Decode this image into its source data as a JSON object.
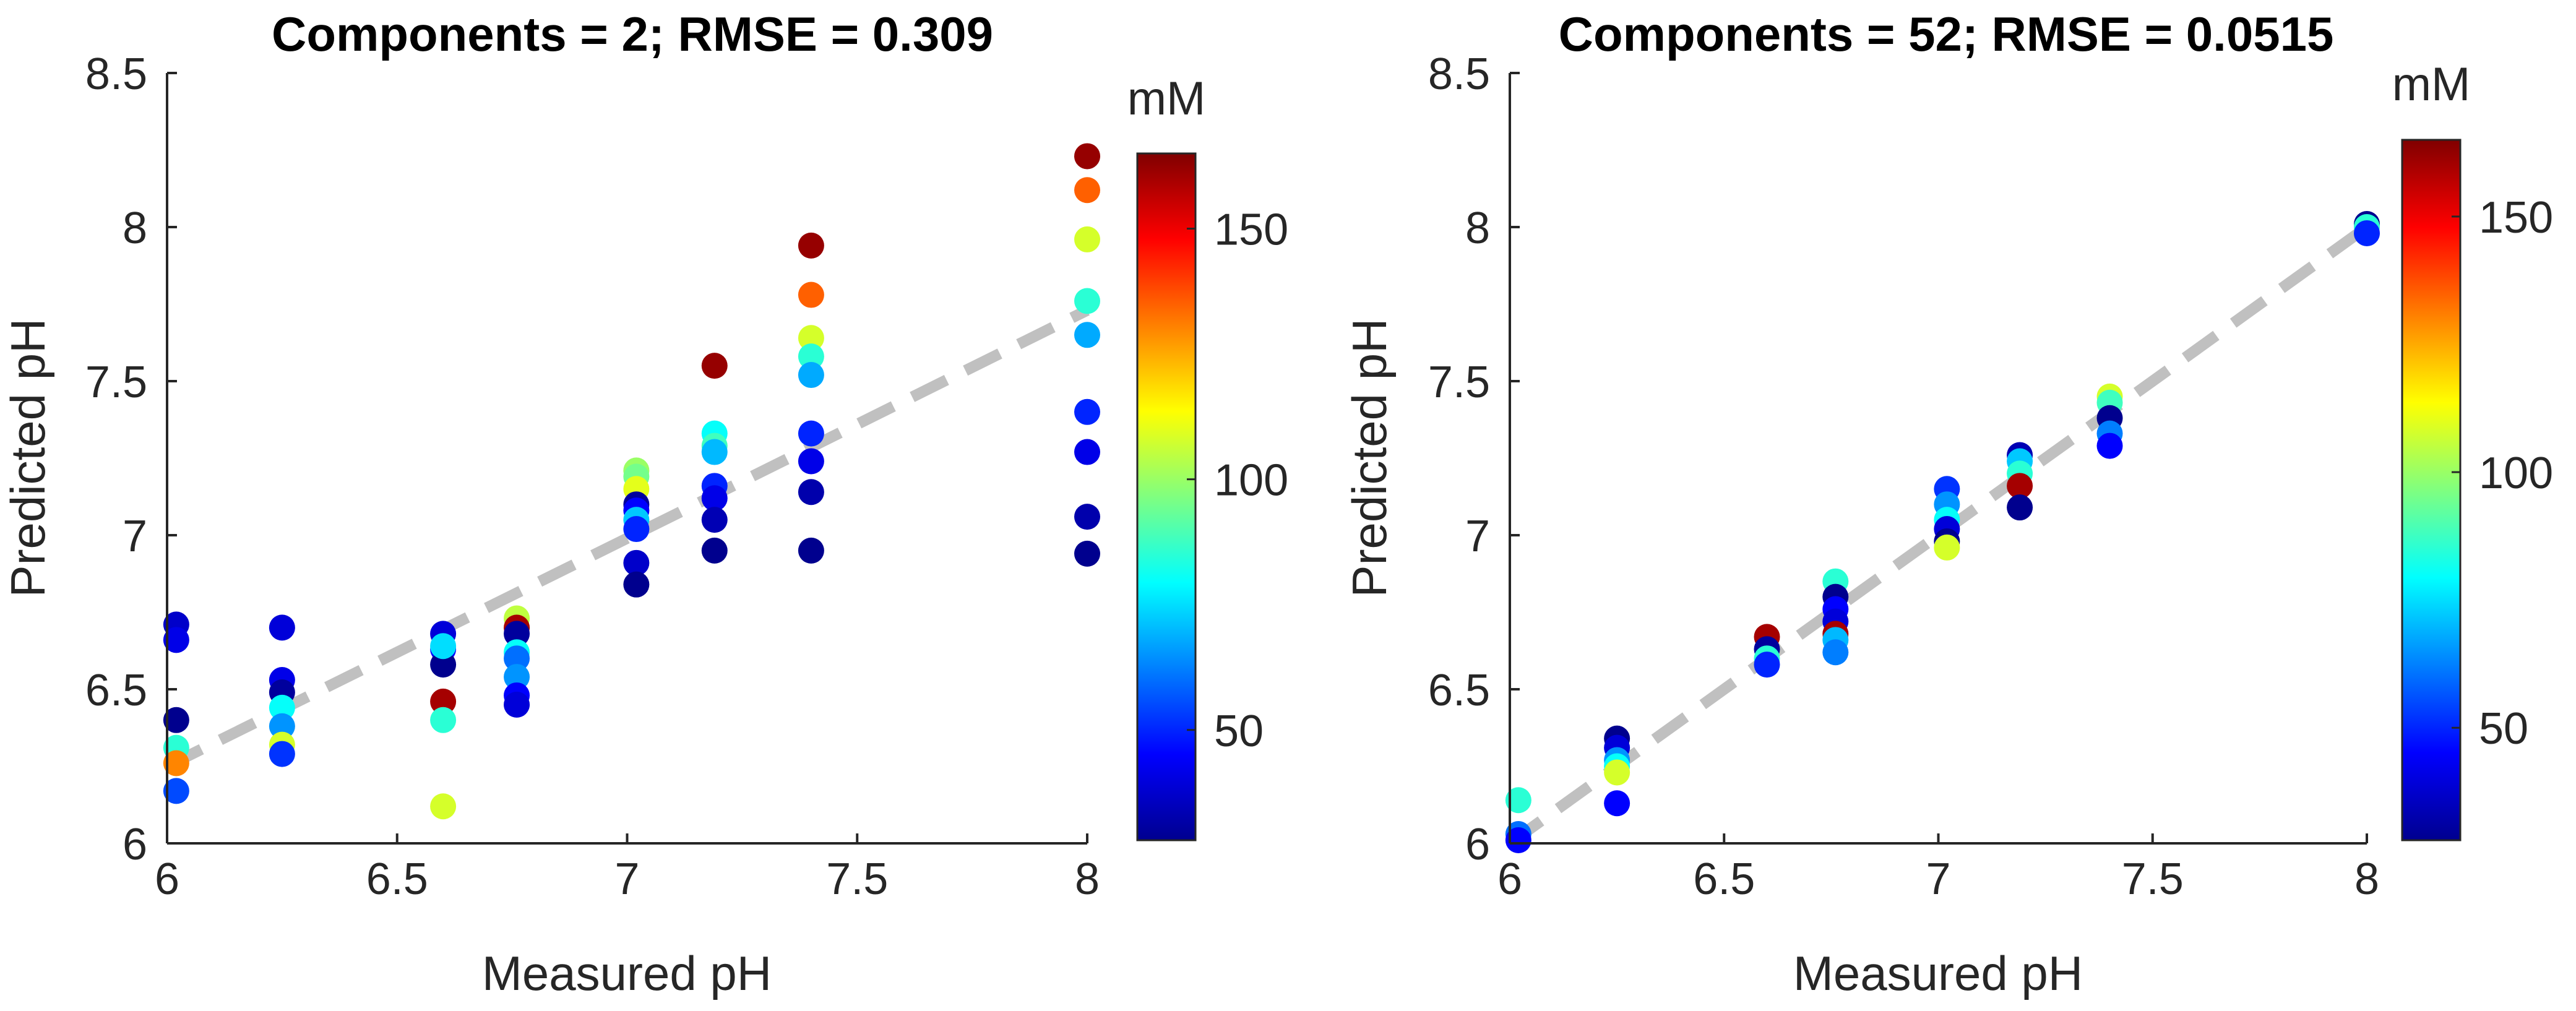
{
  "chart_data": [
    {
      "type": "scatter",
      "title": "Components = 2; RMSE = 0.309",
      "xlabel": "Measured pH",
      "ylabel": "Predicted pH",
      "xlim": [
        6,
        8
      ],
      "ylim": [
        6,
        8.5
      ],
      "xticks": [
        6,
        6.5,
        7,
        7.5,
        8
      ],
      "yticks": [
        6,
        6.5,
        7,
        7.5,
        8,
        8.5
      ],
      "colorbar": {
        "label": "mM",
        "range": [
          28,
          165
        ],
        "ticks": [
          50,
          100,
          150
        ]
      },
      "identity_line": {
        "from": [
          6,
          6.25
        ],
        "to": [
          8,
          7.73
        ],
        "style": "dashed",
        "color": "#c0c0c0"
      },
      "grid": false,
      "points": [
        {
          "x": 6.02,
          "y": 6.71,
          "c": 38
        },
        {
          "x": 6.02,
          "y": 6.66,
          "c": 42
        },
        {
          "x": 6.02,
          "y": 6.4,
          "c": 30
        },
        {
          "x": 6.02,
          "y": 6.31,
          "c": 85
        },
        {
          "x": 6.02,
          "y": 6.26,
          "c": 130
        },
        {
          "x": 6.02,
          "y": 6.17,
          "c": 55
        },
        {
          "x": 6.25,
          "y": 6.7,
          "c": 40
        },
        {
          "x": 6.25,
          "y": 6.53,
          "c": 42
        },
        {
          "x": 6.25,
          "y": 6.49,
          "c": 32
        },
        {
          "x": 6.25,
          "y": 6.44,
          "c": 80
        },
        {
          "x": 6.25,
          "y": 6.38,
          "c": 65
        },
        {
          "x": 6.25,
          "y": 6.32,
          "c": 108
        },
        {
          "x": 6.25,
          "y": 6.29,
          "c": 52
        },
        {
          "x": 6.6,
          "y": 6.68,
          "c": 40
        },
        {
          "x": 6.6,
          "y": 6.63,
          "c": 45
        },
        {
          "x": 6.6,
          "y": 6.58,
          "c": 30
        },
        {
          "x": 6.6,
          "y": 6.64,
          "c": 75
        },
        {
          "x": 6.6,
          "y": 6.46,
          "c": 160
        },
        {
          "x": 6.6,
          "y": 6.4,
          "c": 85
        },
        {
          "x": 6.6,
          "y": 6.12,
          "c": 108
        },
        {
          "x": 6.76,
          "y": 6.73,
          "c": 105
        },
        {
          "x": 6.76,
          "y": 6.7,
          "c": 160
        },
        {
          "x": 6.76,
          "y": 6.68,
          "c": 32
        },
        {
          "x": 6.76,
          "y": 6.62,
          "c": 80
        },
        {
          "x": 6.76,
          "y": 6.6,
          "c": 60
        },
        {
          "x": 6.76,
          "y": 6.54,
          "c": 65
        },
        {
          "x": 6.76,
          "y": 6.48,
          "c": 45
        },
        {
          "x": 6.76,
          "y": 6.45,
          "c": 40
        },
        {
          "x": 7.02,
          "y": 7.21,
          "c": 100
        },
        {
          "x": 7.02,
          "y": 7.19,
          "c": 95
        },
        {
          "x": 7.02,
          "y": 7.15,
          "c": 110
        },
        {
          "x": 7.02,
          "y": 7.1,
          "c": 32
        },
        {
          "x": 7.02,
          "y": 7.08,
          "c": 45
        },
        {
          "x": 7.02,
          "y": 7.05,
          "c": 72
        },
        {
          "x": 7.02,
          "y": 7.02,
          "c": 50
        },
        {
          "x": 7.02,
          "y": 6.91,
          "c": 38
        },
        {
          "x": 7.02,
          "y": 6.84,
          "c": 30
        },
        {
          "x": 7.19,
          "y": 7.55,
          "c": 162
        },
        {
          "x": 7.19,
          "y": 7.33,
          "c": 80
        },
        {
          "x": 7.19,
          "y": 7.29,
          "c": 88
        },
        {
          "x": 7.19,
          "y": 7.27,
          "c": 70
        },
        {
          "x": 7.19,
          "y": 7.16,
          "c": 50
        },
        {
          "x": 7.19,
          "y": 7.12,
          "c": 42
        },
        {
          "x": 7.19,
          "y": 7.05,
          "c": 35
        },
        {
          "x": 7.19,
          "y": 6.95,
          "c": 30
        },
        {
          "x": 7.4,
          "y": 7.94,
          "c": 162
        },
        {
          "x": 7.4,
          "y": 7.78,
          "c": 135
        },
        {
          "x": 7.4,
          "y": 7.64,
          "c": 108
        },
        {
          "x": 7.4,
          "y": 7.58,
          "c": 85
        },
        {
          "x": 7.4,
          "y": 7.52,
          "c": 68
        },
        {
          "x": 7.4,
          "y": 7.33,
          "c": 50
        },
        {
          "x": 7.4,
          "y": 7.24,
          "c": 42
        },
        {
          "x": 7.4,
          "y": 7.14,
          "c": 34
        },
        {
          "x": 7.4,
          "y": 6.95,
          "c": 30
        },
        {
          "x": 8.0,
          "y": 8.23,
          "c": 162
        },
        {
          "x": 8.0,
          "y": 8.12,
          "c": 135
        },
        {
          "x": 8.0,
          "y": 7.96,
          "c": 108
        },
        {
          "x": 8.0,
          "y": 7.76,
          "c": 85
        },
        {
          "x": 8.0,
          "y": 7.65,
          "c": 68
        },
        {
          "x": 8.0,
          "y": 7.4,
          "c": 50
        },
        {
          "x": 8.0,
          "y": 7.27,
          "c": 42
        },
        {
          "x": 8.0,
          "y": 7.06,
          "c": 34
        },
        {
          "x": 8.0,
          "y": 6.94,
          "c": 30
        }
      ]
    },
    {
      "type": "scatter",
      "title": "Components = 52; RMSE = 0.0515",
      "xlabel": "Measured pH",
      "ylabel": "Predicted pH",
      "xlim": [
        6,
        8
      ],
      "ylim": [
        6,
        8.5
      ],
      "xticks": [
        6,
        6.5,
        7,
        7.5,
        8
      ],
      "yticks": [
        6,
        6.5,
        7,
        7.5,
        8,
        8.5
      ],
      "colorbar": {
        "label": "mM",
        "range": [
          28,
          165
        ],
        "ticks": [
          50,
          100,
          150
        ]
      },
      "identity_line": {
        "from": [
          6,
          6.0
        ],
        "to": [
          8,
          8.0
        ],
        "style": "dashed",
        "color": "#c0c0c0"
      },
      "grid": false,
      "points": [
        {
          "x": 6.02,
          "y": 6.14,
          "c": 85
        },
        {
          "x": 6.02,
          "y": 6.03,
          "c": 60
        },
        {
          "x": 6.02,
          "y": 6.01,
          "c": 45
        },
        {
          "x": 6.25,
          "y": 6.34,
          "c": 30
        },
        {
          "x": 6.25,
          "y": 6.31,
          "c": 40
        },
        {
          "x": 6.25,
          "y": 6.27,
          "c": 65
        },
        {
          "x": 6.25,
          "y": 6.25,
          "c": 80
        },
        {
          "x": 6.25,
          "y": 6.23,
          "c": 108
        },
        {
          "x": 6.25,
          "y": 6.13,
          "c": 45
        },
        {
          "x": 6.6,
          "y": 6.67,
          "c": 160
        },
        {
          "x": 6.6,
          "y": 6.63,
          "c": 32
        },
        {
          "x": 6.6,
          "y": 6.6,
          "c": 85
        },
        {
          "x": 6.6,
          "y": 6.58,
          "c": 50
        },
        {
          "x": 6.76,
          "y": 6.85,
          "c": 85
        },
        {
          "x": 6.76,
          "y": 6.8,
          "c": 30
        },
        {
          "x": 6.76,
          "y": 6.76,
          "c": 45
        },
        {
          "x": 6.76,
          "y": 6.72,
          "c": 40
        },
        {
          "x": 6.76,
          "y": 6.68,
          "c": 160
        },
        {
          "x": 6.76,
          "y": 6.66,
          "c": 70
        },
        {
          "x": 6.76,
          "y": 6.62,
          "c": 62
        },
        {
          "x": 7.02,
          "y": 7.15,
          "c": 52
        },
        {
          "x": 7.02,
          "y": 7.1,
          "c": 65
        },
        {
          "x": 7.02,
          "y": 7.05,
          "c": 80
        },
        {
          "x": 7.02,
          "y": 7.02,
          "c": 40
        },
        {
          "x": 7.02,
          "y": 6.98,
          "c": 30
        },
        {
          "x": 7.02,
          "y": 6.96,
          "c": 108
        },
        {
          "x": 7.19,
          "y": 7.26,
          "c": 35
        },
        {
          "x": 7.19,
          "y": 7.24,
          "c": 72
        },
        {
          "x": 7.19,
          "y": 7.2,
          "c": 85
        },
        {
          "x": 7.19,
          "y": 7.16,
          "c": 160
        },
        {
          "x": 7.19,
          "y": 7.09,
          "c": 30
        },
        {
          "x": 7.4,
          "y": 7.45,
          "c": 108
        },
        {
          "x": 7.4,
          "y": 7.43,
          "c": 88
        },
        {
          "x": 7.4,
          "y": 7.38,
          "c": 30
        },
        {
          "x": 7.4,
          "y": 7.33,
          "c": 62
        },
        {
          "x": 7.4,
          "y": 7.29,
          "c": 45
        },
        {
          "x": 8.0,
          "y": 8.01,
          "c": 30
        },
        {
          "x": 8.0,
          "y": 8.0,
          "c": 85
        },
        {
          "x": 8.0,
          "y": 7.98,
          "c": 50
        }
      ]
    }
  ]
}
